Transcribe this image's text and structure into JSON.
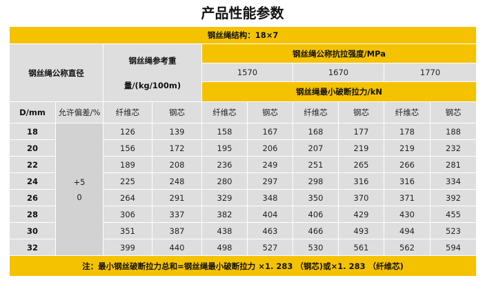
{
  "title": "产品性能参数",
  "structure_label": "钢丝绳结构：18×7",
  "headers": {
    "nominal_diameter": "钢丝绳公称直径",
    "ref_weight_line1": "钢丝绳参考重",
    "ref_weight_line2": "量/(kg/100m)",
    "tensile_strength": "钢丝绳公称抗拉强度/MPa",
    "grades": [
      "1570",
      "1670",
      "1770"
    ],
    "min_breaking_force": "钢丝绳最小破断拉力/kN",
    "d_mm": "D/mm",
    "tolerance": "允许偏差/%",
    "fiber_core": "纤维芯",
    "steel_core": "钢芯"
  },
  "tolerance_values": [
    "+5",
    "0"
  ],
  "rows": [
    {
      "d": "18",
      "wf": "126",
      "ws": "139",
      "f1": "158",
      "s1": "167",
      "f2": "168",
      "s2": "177",
      "f3": "178",
      "s3": "188"
    },
    {
      "d": "20",
      "wf": "156",
      "ws": "172",
      "f1": "195",
      "s1": "206",
      "f2": "207",
      "s2": "219",
      "f3": "219",
      "s3": "232"
    },
    {
      "d": "22",
      "wf": "189",
      "ws": "208",
      "f1": "236",
      "s1": "249",
      "f2": "251",
      "s2": "265",
      "f3": "266",
      "s3": "281"
    },
    {
      "d": "24",
      "wf": "225",
      "ws": "248",
      "f1": "280",
      "s1": "297",
      "f2": "298",
      "s2": "316",
      "f3": "316",
      "s3": "334"
    },
    {
      "d": "26",
      "wf": "264",
      "ws": "291",
      "f1": "329",
      "s1": "348",
      "f2": "350",
      "s2": "370",
      "f3": "371",
      "s3": "392"
    },
    {
      "d": "28",
      "wf": "306",
      "ws": "337",
      "f1": "382",
      "s1": "404",
      "f2": "406",
      "s2": "429",
      "f3": "430",
      "s3": "455"
    },
    {
      "d": "30",
      "wf": "351",
      "ws": "387",
      "f1": "438",
      "s1": "463",
      "f2": "466",
      "s2": "493",
      "f3": "494",
      "s3": "523"
    },
    {
      "d": "32",
      "wf": "399",
      "ws": "440",
      "f1": "498",
      "s1": "527",
      "f2": "530",
      "s2": "561",
      "f3": "562",
      "s3": "594"
    }
  ],
  "note": "注：最小钢丝破断拉力总和=钢丝绳最小破断拉力 ×1. 283 （钢芯)或×1. 283 （纤维芯)"
}
